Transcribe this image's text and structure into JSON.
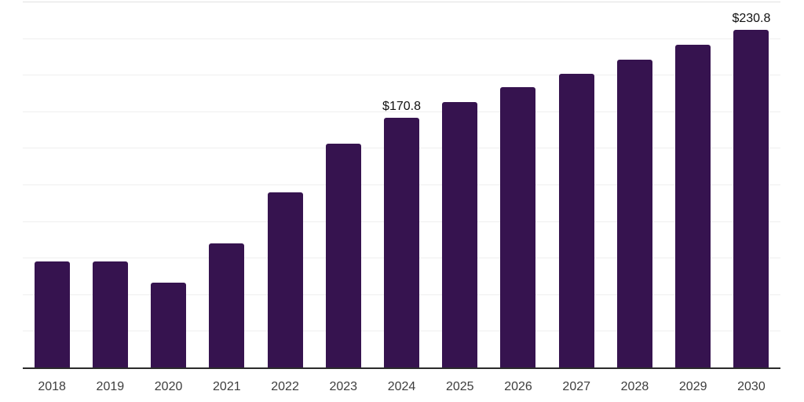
{
  "chart_data": {
    "type": "bar",
    "categories": [
      "2018",
      "2019",
      "2020",
      "2021",
      "2022",
      "2023",
      "2024",
      "2025",
      "2026",
      "2027",
      "2028",
      "2029",
      "2030"
    ],
    "values": [
      72.5,
      72.5,
      58.2,
      84.6,
      119.9,
      152.7,
      170.8,
      181.3,
      191.4,
      200.7,
      210.1,
      220.4,
      230.8
    ],
    "data_labels": [
      {
        "category": "2024",
        "text": "$170.8"
      },
      {
        "category": "2030",
        "text": "$230.8"
      }
    ],
    "xlabel": "",
    "ylabel": "",
    "ylim": [
      0,
      250
    ],
    "gridline_step": 25,
    "grid": "horizontal",
    "y_tick_labels_visible": false,
    "legend_position": "none",
    "colors": {
      "bar": "#36134F",
      "axis_line": "#2b2b2b",
      "gridline": "#efefef",
      "top_gridline": "#e2e2e2",
      "tick_label": "#3d3d3d",
      "data_label": "#111111",
      "background": "#ffffff"
    }
  }
}
